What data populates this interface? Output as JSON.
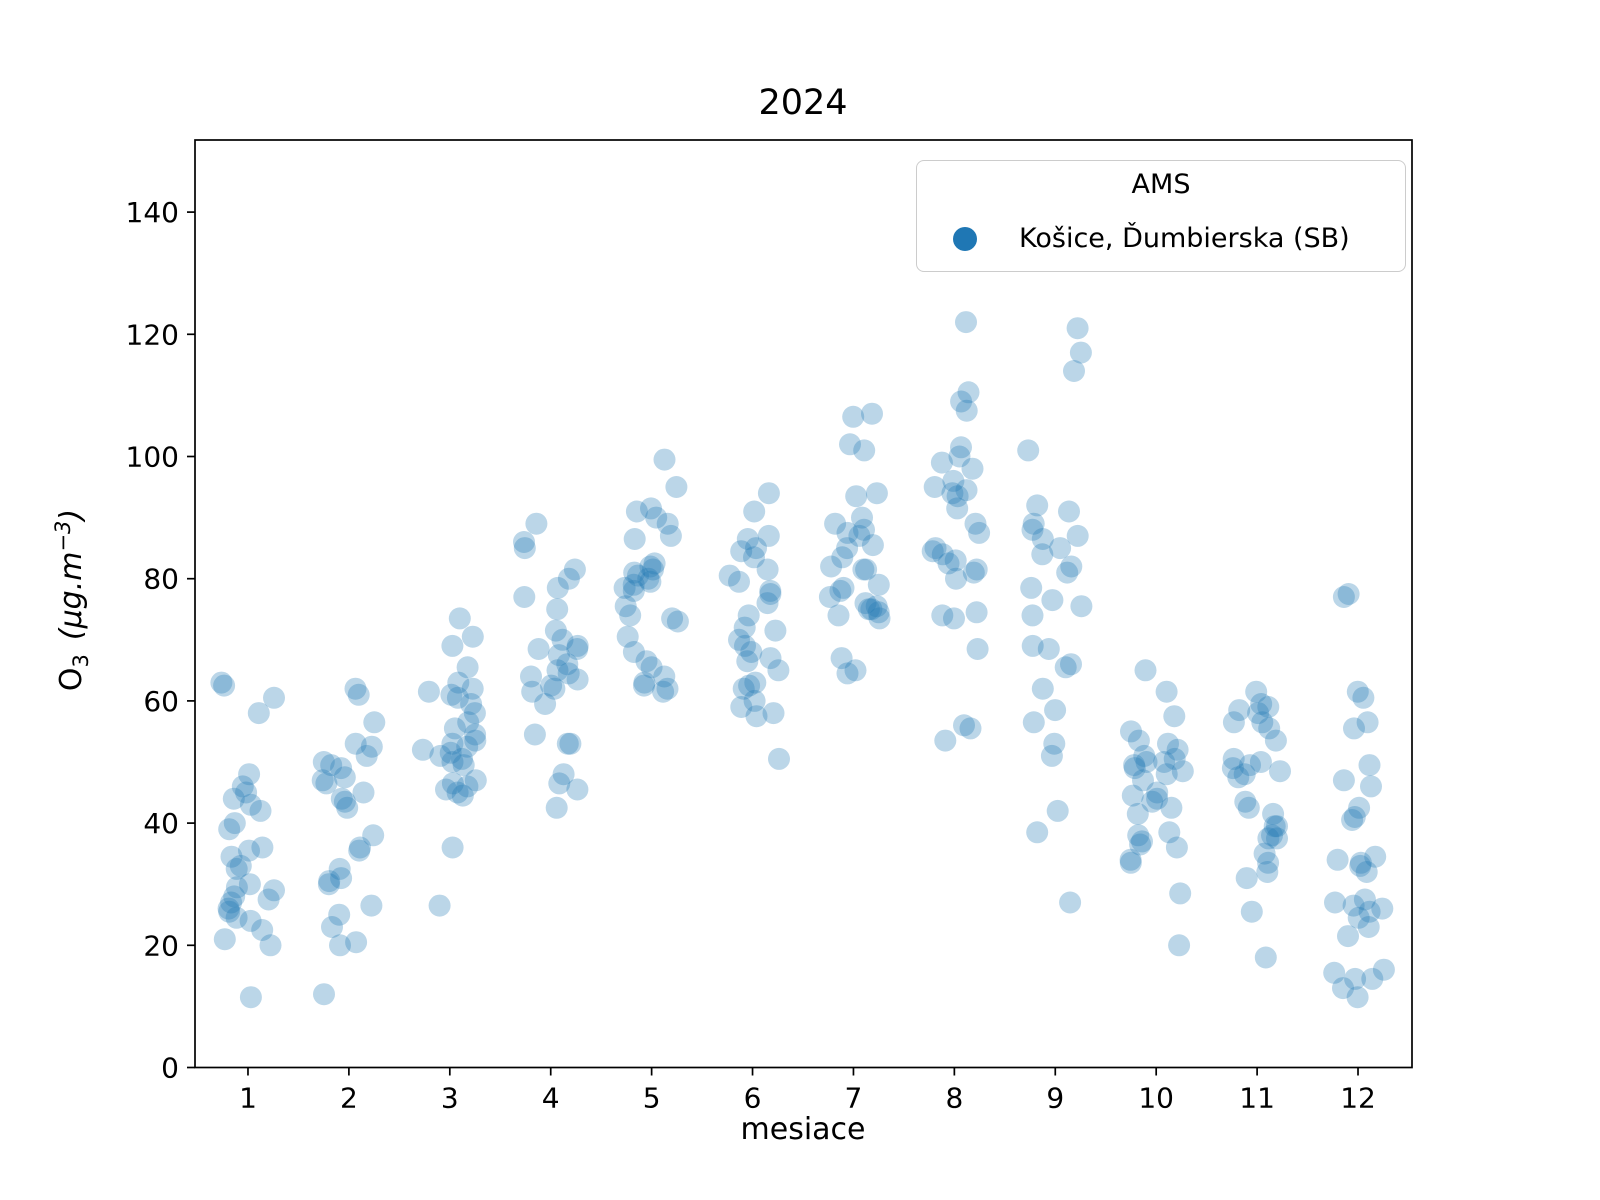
{
  "chart_data": {
    "type": "scatter",
    "title": "2024",
    "xlabel": "mesiace",
    "ylabel_text": "O3  (μg.m−3)",
    "ylabel_parts": {
      "base": "O",
      "sub": "3",
      "unit_open": "(μg.m",
      "unit_sup": "−3",
      "unit_close": ")"
    },
    "legend": {
      "title": "AMS",
      "position": "upper right",
      "entries": [
        {
          "label": "Košice, Ďumbierska (SB)",
          "color": "#1f77b4"
        }
      ]
    },
    "marker": {
      "color": "#1f77b4",
      "opacity": 0.3,
      "radius_px": 11
    },
    "axes": {
      "xticks": [
        1,
        2,
        3,
        4,
        5,
        6,
        7,
        8,
        9,
        10,
        11,
        12
      ],
      "yticks": [
        0,
        20,
        40,
        60,
        80,
        100,
        120,
        140
      ],
      "xlim": [
        0.475,
        12.535
      ],
      "ylim": [
        0,
        151.8
      ],
      "grid": false,
      "spine_color": "#000000"
    },
    "series": [
      {
        "name": "Košice, Ďumbierska (SB)",
        "unit": "µg.m-3",
        "values_by_month": {
          "1": [
            63,
            62.5,
            60.5,
            58,
            48,
            46,
            45,
            44,
            43,
            42,
            40,
            39,
            36,
            35.5,
            34.5,
            33,
            32.5,
            30,
            29.5,
            29,
            28,
            27.5,
            27,
            26,
            25.5,
            24.5,
            24,
            22.5,
            21,
            20,
            11.5
          ],
          "2": [
            62,
            61,
            56.5,
            53,
            52.5,
            51,
            50,
            49.5,
            49,
            47.5,
            47,
            46.5,
            45,
            44,
            43.5,
            42.5,
            38,
            36,
            35.5,
            32.5,
            31,
            30.5,
            30,
            26.5,
            25,
            23,
            20.5,
            20,
            12
          ],
          "3": [
            73.5,
            70.5,
            69,
            65.5,
            63,
            62,
            61.5,
            61,
            60.5,
            59.5,
            58,
            56.5,
            55.5,
            54.5,
            53.5,
            53,
            52.5,
            52,
            51.5,
            51,
            50.5,
            50,
            49.5,
            47,
            46.5,
            46,
            45.5,
            45,
            44.5,
            36,
            26.5
          ],
          "4": [
            89,
            86,
            85,
            81.5,
            80,
            78.5,
            77,
            75,
            71.5,
            70,
            69,
            68.5,
            68.5,
            67.5,
            66,
            65,
            64.5,
            64,
            63.5,
            62.5,
            62,
            61.5,
            59.5,
            54.5,
            53,
            53,
            48,
            46.5,
            45.5,
            42.5
          ],
          "5": [
            99.5,
            95,
            91.5,
            91,
            90,
            89,
            87,
            86.5,
            82.5,
            82,
            81.5,
            81,
            80.5,
            80,
            79.5,
            79,
            78.5,
            78,
            75.5,
            74,
            73.5,
            73,
            70.5,
            68,
            66.5,
            65.5,
            64,
            63,
            62.5,
            62,
            61.5
          ],
          "6": [
            94,
            91,
            87,
            86.5,
            85,
            84.5,
            83.5,
            81.5,
            80.5,
            79.5,
            78,
            77.5,
            76,
            74,
            72,
            71.5,
            70,
            69,
            68,
            67,
            66.5,
            65,
            63,
            62.5,
            62,
            60,
            59,
            58,
            57.5,
            50.5
          ],
          "7": [
            107,
            106.5,
            102,
            101,
            94,
            93.5,
            90,
            89,
            88,
            87.5,
            87,
            85.5,
            85,
            83.5,
            82,
            81.5,
            81.5,
            79,
            78.5,
            78,
            77,
            76,
            75.5,
            75,
            75,
            74.5,
            74,
            73.5,
            67,
            65,
            64.5
          ],
          "8": [
            122,
            110.5,
            109,
            107.5,
            101.5,
            100,
            99,
            98,
            96,
            95,
            94.5,
            94,
            93.5,
            91.5,
            89,
            87.5,
            85,
            84.5,
            84,
            83,
            82.5,
            81.5,
            81,
            80,
            74.5,
            74,
            73.5,
            68.5,
            56,
            55.5,
            53.5
          ],
          "9": [
            121,
            117,
            114,
            101,
            92,
            91,
            89,
            88,
            87,
            86.5,
            85,
            84,
            82,
            81,
            78.5,
            76.5,
            75.5,
            74,
            69,
            68.5,
            66,
            65.5,
            62,
            58.5,
            56.5,
            53,
            51,
            42,
            38.5,
            27
          ],
          "10": [
            65,
            61.5,
            57.5,
            55,
            53.5,
            53,
            52,
            51,
            50.5,
            50,
            50,
            49.5,
            49,
            48.5,
            48,
            47,
            45,
            44.5,
            44,
            43.5,
            42.5,
            41.5,
            38.5,
            38,
            37,
            36.5,
            36,
            34,
            33.5,
            28.5,
            20
          ],
          "11": [
            61.5,
            59.5,
            59,
            58.5,
            58,
            56.5,
            56.5,
            55.5,
            53.5,
            50.5,
            50,
            49.5,
            49,
            48.5,
            48,
            47.5,
            43.5,
            42.5,
            41.5,
            39.5,
            39.5,
            38,
            37.5,
            37.5,
            35,
            33.5,
            32,
            31,
            25.5,
            18
          ],
          "12": [
            77.5,
            77,
            61.5,
            60.5,
            56.5,
            55.5,
            49.5,
            47,
            46,
            42.5,
            41,
            40.5,
            34.5,
            34,
            33.5,
            33,
            32,
            27.5,
            27,
            26.5,
            26,
            25.5,
            24.5,
            23,
            21.5,
            16,
            15.5,
            14.5,
            14.5,
            13,
            11.5
          ]
        }
      }
    ]
  }
}
